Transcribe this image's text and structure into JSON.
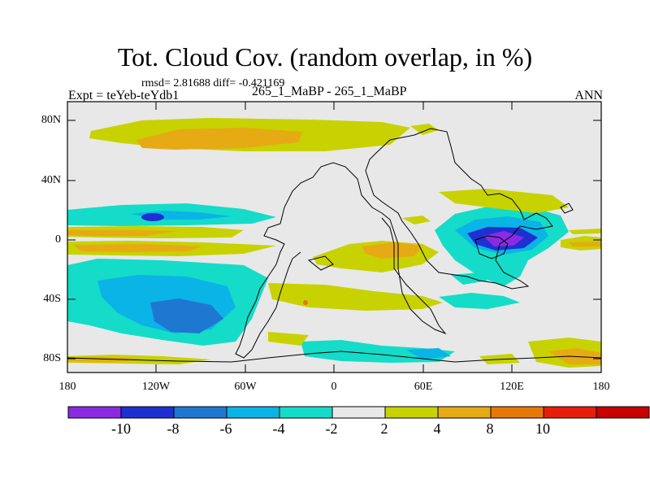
{
  "title": "Tot. Cloud Cov. (random overlap, in %)",
  "stats": "rmsd= 2.81688 diff= -0.421169",
  "left_label": "Expt = teYeb-teYdb1",
  "center_label": "265_1_MaBP - 265_1_MaBP",
  "right_label": "ANN",
  "lat_labels": [
    "80N",
    "40N",
    "0",
    "40S",
    "80S"
  ],
  "lon_labels": [
    "180",
    "120W",
    "60W",
    "0",
    "60E",
    "120E",
    "180"
  ],
  "colorbar": {
    "labels": [
      "-10",
      "-8",
      "-6",
      "-4",
      "-2",
      "2",
      "4",
      "8",
      "10"
    ],
    "colors": [
      "#8a2be2",
      "#2030d0",
      "#1e78d2",
      "#0ab4e6",
      "#14dcc8",
      "#e8e8e8",
      "#c8d200",
      "#e6aa14",
      "#e6780a",
      "#e61e0a",
      "#c80000"
    ]
  }
}
